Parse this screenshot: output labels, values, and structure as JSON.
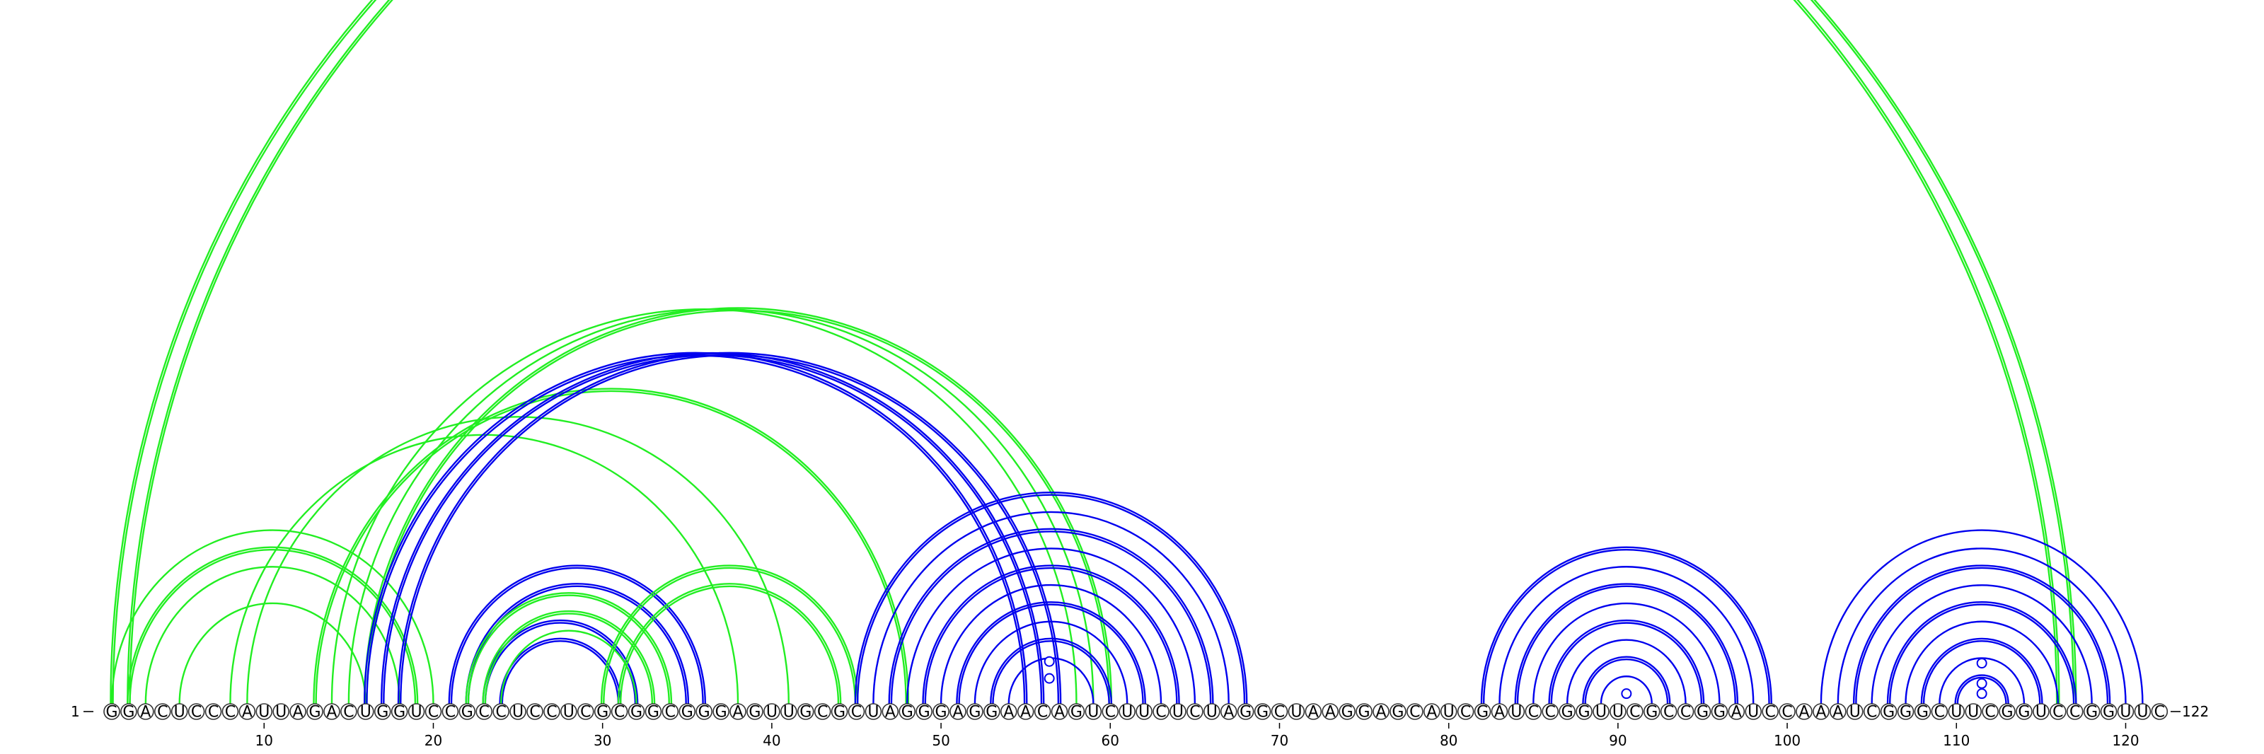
{
  "sequence": "GGACUCCCAUUAGACUGGUCCGCCUCCUCGCGGCGGGAGUUGCGCUAGGGAGGAACAGUCUUCUCUAGGCUAAGGAGCAUCGAUCCGGUUCGCCGGAUCCAAAUCGGGCUUCGGUCCGGUUC",
  "start_label": "1",
  "end_label": "122",
  "ticks": [
    10,
    20,
    30,
    40,
    50,
    60,
    70,
    80,
    90,
    100,
    110,
    120
  ],
  "colors": {
    "green": "#22ee22",
    "blue": "#0000ee"
  },
  "arcs": [
    {
      "i": 1,
      "j": 116,
      "c": "green",
      "double": true
    },
    {
      "i": 2,
      "j": 117,
      "c": "green",
      "double": true
    },
    {
      "i": 1,
      "j": 20,
      "c": "green",
      "double": false
    },
    {
      "i": 2,
      "j": 19,
      "c": "green",
      "double": true
    },
    {
      "i": 3,
      "j": 18,
      "c": "green",
      "double": false
    },
    {
      "i": 5,
      "j": 16,
      "c": "green",
      "double": false
    },
    {
      "i": 8,
      "j": 38,
      "c": "green",
      "double": false
    },
    {
      "i": 9,
      "j": 41,
      "c": "green",
      "double": false
    },
    {
      "i": 13,
      "j": 48,
      "c": "green",
      "double": true
    },
    {
      "i": 14,
      "j": 58,
      "c": "green",
      "double": false
    },
    {
      "i": 15,
      "j": 59,
      "c": "green",
      "double": false
    },
    {
      "i": 16,
      "j": 60,
      "c": "green",
      "double": true
    },
    {
      "i": 16,
      "j": 55,
      "c": "blue",
      "double": true
    },
    {
      "i": 17,
      "j": 56,
      "c": "blue",
      "double": true
    },
    {
      "i": 18,
      "j": 57,
      "c": "blue",
      "double": true
    },
    {
      "i": 21,
      "j": 36,
      "c": "blue",
      "double": true
    },
    {
      "i": 22,
      "j": 35,
      "c": "blue",
      "double": true
    },
    {
      "i": 23,
      "j": 32,
      "c": "blue",
      "double": true
    },
    {
      "i": 24,
      "j": 31,
      "c": "blue",
      "double": true
    },
    {
      "i": 22,
      "j": 34,
      "c": "green",
      "double": true
    },
    {
      "i": 23,
      "j": 33,
      "c": "green",
      "double": true
    },
    {
      "i": 24,
      "j": 32,
      "c": "green",
      "double": false
    },
    {
      "i": 30,
      "j": 45,
      "c": "green",
      "double": true
    },
    {
      "i": 31,
      "j": 44,
      "c": "green",
      "double": true
    },
    {
      "i": 45,
      "j": 68,
      "c": "blue",
      "double": true
    },
    {
      "i": 46,
      "j": 67,
      "c": "blue",
      "double": false
    },
    {
      "i": 47,
      "j": 66,
      "c": "blue",
      "double": true
    },
    {
      "i": 48,
      "j": 65,
      "c": "blue",
      "double": false
    },
    {
      "i": 49,
      "j": 64,
      "c": "blue",
      "double": true
    },
    {
      "i": 50,
      "j": 63,
      "c": "blue",
      "double": false
    },
    {
      "i": 51,
      "j": 62,
      "c": "blue",
      "double": true
    },
    {
      "i": 52,
      "j": 61,
      "c": "blue",
      "double": false
    },
    {
      "i": 53,
      "j": 60,
      "c": "blue",
      "double": true
    },
    {
      "i": 54,
      "j": 59,
      "c": "blue",
      "double": false
    },
    {
      "i": 82,
      "j": 99,
      "c": "blue",
      "double": true
    },
    {
      "i": 83,
      "j": 98,
      "c": "blue",
      "double": false
    },
    {
      "i": 84,
      "j": 97,
      "c": "blue",
      "double": true
    },
    {
      "i": 85,
      "j": 96,
      "c": "blue",
      "double": false
    },
    {
      "i": 86,
      "j": 95,
      "c": "blue",
      "double": true
    },
    {
      "i": 87,
      "j": 94,
      "c": "blue",
      "double": false
    },
    {
      "i": 88,
      "j": 93,
      "c": "blue",
      "double": true
    },
    {
      "i": 89,
      "j": 92,
      "c": "blue",
      "double": false
    },
    {
      "i": 102,
      "j": 121,
      "c": "blue",
      "double": false
    },
    {
      "i": 103,
      "j": 120,
      "c": "blue",
      "double": false
    },
    {
      "i": 104,
      "j": 119,
      "c": "blue",
      "double": true
    },
    {
      "i": 105,
      "j": 118,
      "c": "blue",
      "double": false
    },
    {
      "i": 106,
      "j": 117,
      "c": "blue",
      "double": true
    },
    {
      "i": 107,
      "j": 116,
      "c": "blue",
      "double": false
    },
    {
      "i": 108,
      "j": 115,
      "c": "blue",
      "double": true
    },
    {
      "i": 109,
      "j": 114,
      "c": "blue",
      "double": false
    },
    {
      "i": 110,
      "j": 113,
      "c": "blue",
      "double": true
    }
  ],
  "markers": [
    {
      "pos": 56.4,
      "depth": 1.5,
      "c": "blue"
    },
    {
      "pos": 56.4,
      "depth": 2.5,
      "c": "blue"
    },
    {
      "pos": 90.5,
      "depth": 0.6,
      "c": "blue"
    },
    {
      "pos": 111.5,
      "depth": 0.6,
      "c": "blue"
    },
    {
      "pos": 111.5,
      "depth": 1.2,
      "c": "blue"
    },
    {
      "pos": 111.5,
      "depth": 2.4,
      "c": "blue"
    }
  ]
}
